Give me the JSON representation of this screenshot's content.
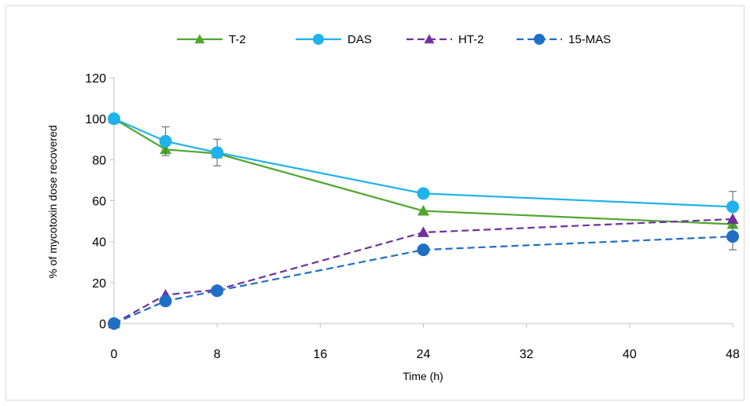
{
  "chart_data": {
    "type": "line",
    "title": "",
    "xlabel": "Time (h)",
    "ylabel": "% of mycotoxin dose recovered",
    "xlim": [
      0,
      48
    ],
    "ylim": [
      0,
      120
    ],
    "x_ticks": [
      0,
      8,
      16,
      24,
      32,
      40,
      48
    ],
    "y_ticks": [
      0,
      20,
      40,
      60,
      80,
      100,
      120
    ],
    "legend_position": "top",
    "grid": false,
    "series": [
      {
        "name": "T-2",
        "color": "#4ea72e",
        "dash": false,
        "marker": "triangle",
        "points": [
          {
            "x": 0,
            "y": 100
          },
          {
            "x": 4,
            "y": 85
          },
          {
            "x": 8,
            "y": 83
          },
          {
            "x": 24,
            "y": 55
          },
          {
            "x": 48,
            "y": 48.5
          }
        ]
      },
      {
        "name": "DAS",
        "color": "#1fb2ec",
        "dash": false,
        "marker": "circle",
        "points": [
          {
            "x": 0,
            "y": 100
          },
          {
            "x": 4,
            "y": 89,
            "err": 7
          },
          {
            "x": 8,
            "y": 83.5,
            "err": 6.5
          },
          {
            "x": 24,
            "y": 63.5
          },
          {
            "x": 48,
            "y": 57,
            "err": 7.5
          }
        ]
      },
      {
        "name": "HT-2",
        "color": "#7030a0",
        "dash": true,
        "marker": "triangle",
        "points": [
          {
            "x": 0,
            "y": 0
          },
          {
            "x": 4,
            "y": 14
          },
          {
            "x": 8,
            "y": 16.5
          },
          {
            "x": 24,
            "y": 44.5
          },
          {
            "x": 48,
            "y": 51
          }
        ]
      },
      {
        "name": "15-MAS",
        "color": "#1f6fc4",
        "dash": true,
        "marker": "circle",
        "points": [
          {
            "x": 0,
            "y": 0
          },
          {
            "x": 4,
            "y": 11
          },
          {
            "x": 8,
            "y": 16
          },
          {
            "x": 24,
            "y": 36
          },
          {
            "x": 48,
            "y": 42.5,
            "err": 6.5
          }
        ]
      }
    ]
  }
}
